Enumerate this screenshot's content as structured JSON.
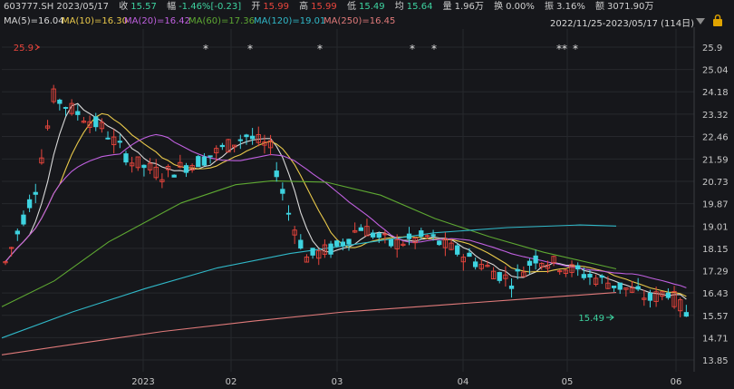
{
  "header": {
    "code": "603777.SH 2023/05/17",
    "close_label": "收",
    "close": "15.57",
    "change_label": "幅",
    "change": "-1.46%[-0.23]",
    "open_label": "开",
    "open": "15.99",
    "high_label": "高",
    "high": "15.99",
    "low_label": "低",
    "low": "15.49",
    "avg_label": "均",
    "avg": "15.64",
    "volume_label": "量",
    "volume": "1.96万",
    "turnover_label": "换",
    "turnover": "0.00%",
    "amplitude_label": "振",
    "amplitude": "3.16%",
    "amount_label": "额",
    "amount": "3071.90万"
  },
  "ma": [
    {
      "text": "MA(5)=16.04",
      "color": "#d8d8d8"
    },
    {
      "text": "MA(10)=16.30",
      "color": "#e8c84a"
    },
    {
      "text": "MA(20)=16.42",
      "color": "#c060e0"
    },
    {
      "text": "MA(60)=17.36",
      "color": "#5ea832"
    },
    {
      "text": "MA(120)=19.01",
      "color": "#30b8c8"
    },
    {
      "text": "MA(250)=16.45",
      "color": "#e07a7a"
    }
  ],
  "range": "2022/11/25-2023/05/17 (114日)",
  "icons": {
    "dropdown": "triangle-down-icon",
    "lock": "lock-icon"
  },
  "colors": {
    "up": "#e8453c",
    "down": "#3ed3e0",
    "bg": "#16171b",
    "grid": "#2c2e33"
  },
  "chart_data": {
    "type": "candlestick",
    "y_ticks": [
      "25.9",
      "25.04",
      "24.18",
      "23.32",
      "22.46",
      "21.59",
      "20.73",
      "19.87",
      "19.01",
      "18.15",
      "17.29",
      "16.43",
      "15.57",
      "14.71",
      "13.85"
    ],
    "x_ticks": [
      "2023",
      "02",
      "03",
      "04",
      "05",
      "06"
    ],
    "ylim": [
      13.85,
      25.9
    ],
    "high_annotation": "25.9",
    "low_annotation": "15.49",
    "stars": [
      "*",
      "*",
      "*",
      "*",
      "*",
      "**",
      "*"
    ]
  }
}
